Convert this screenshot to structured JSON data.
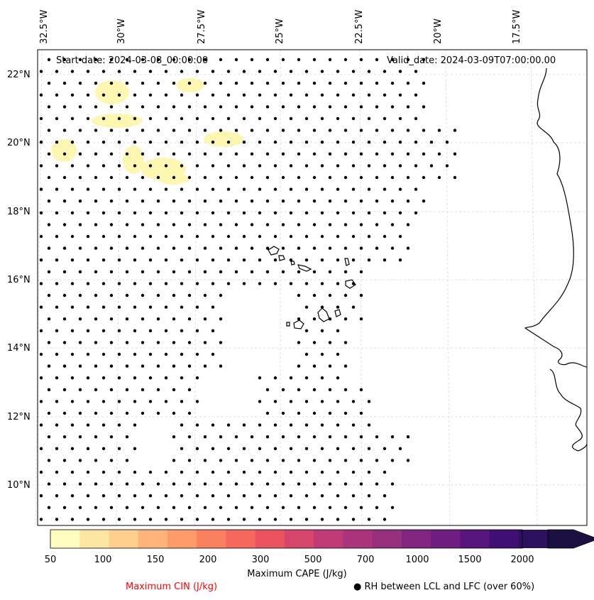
{
  "map": {
    "start_date": "Start date: 2024-03-08_00:00:00",
    "valid_date": "Valid_date: 2024-03-09T07:00:00.00",
    "lon_labels": [
      "32.5°W",
      "30°W",
      "27.5°W",
      "25°W",
      "22.5°W",
      "20°W",
      "17.5°W"
    ],
    "lat_labels": [
      "22°N",
      "20°N",
      "18°N",
      "16°N",
      "14°N",
      "12°N",
      "10°N"
    ]
  },
  "colorbar": {
    "title": "Maximum CAPE (J/kg)",
    "ticks": [
      "50",
      "100",
      "150",
      "200",
      "300",
      "500",
      "700",
      "1000",
      "1500",
      "2000"
    ],
    "colors": [
      "#fefdbf",
      "#fde6a3",
      "#fecf8e",
      "#feb47b",
      "#fd9b6b",
      "#fa815f",
      "#f4695c",
      "#e8535e",
      "#d6456c",
      "#c03a76",
      "#ab337c",
      "#96307d",
      "#822581",
      "#6e1d81",
      "#59157e",
      "#400f73",
      "#2b115e",
      "#1a1042"
    ]
  },
  "legend": {
    "cin_label": "Maximum CIN (J/kg)",
    "rh_label": "RH between LCL and LFC (over 60%)",
    "rh_marker": "●",
    "cin_color": "#ff0000"
  }
}
